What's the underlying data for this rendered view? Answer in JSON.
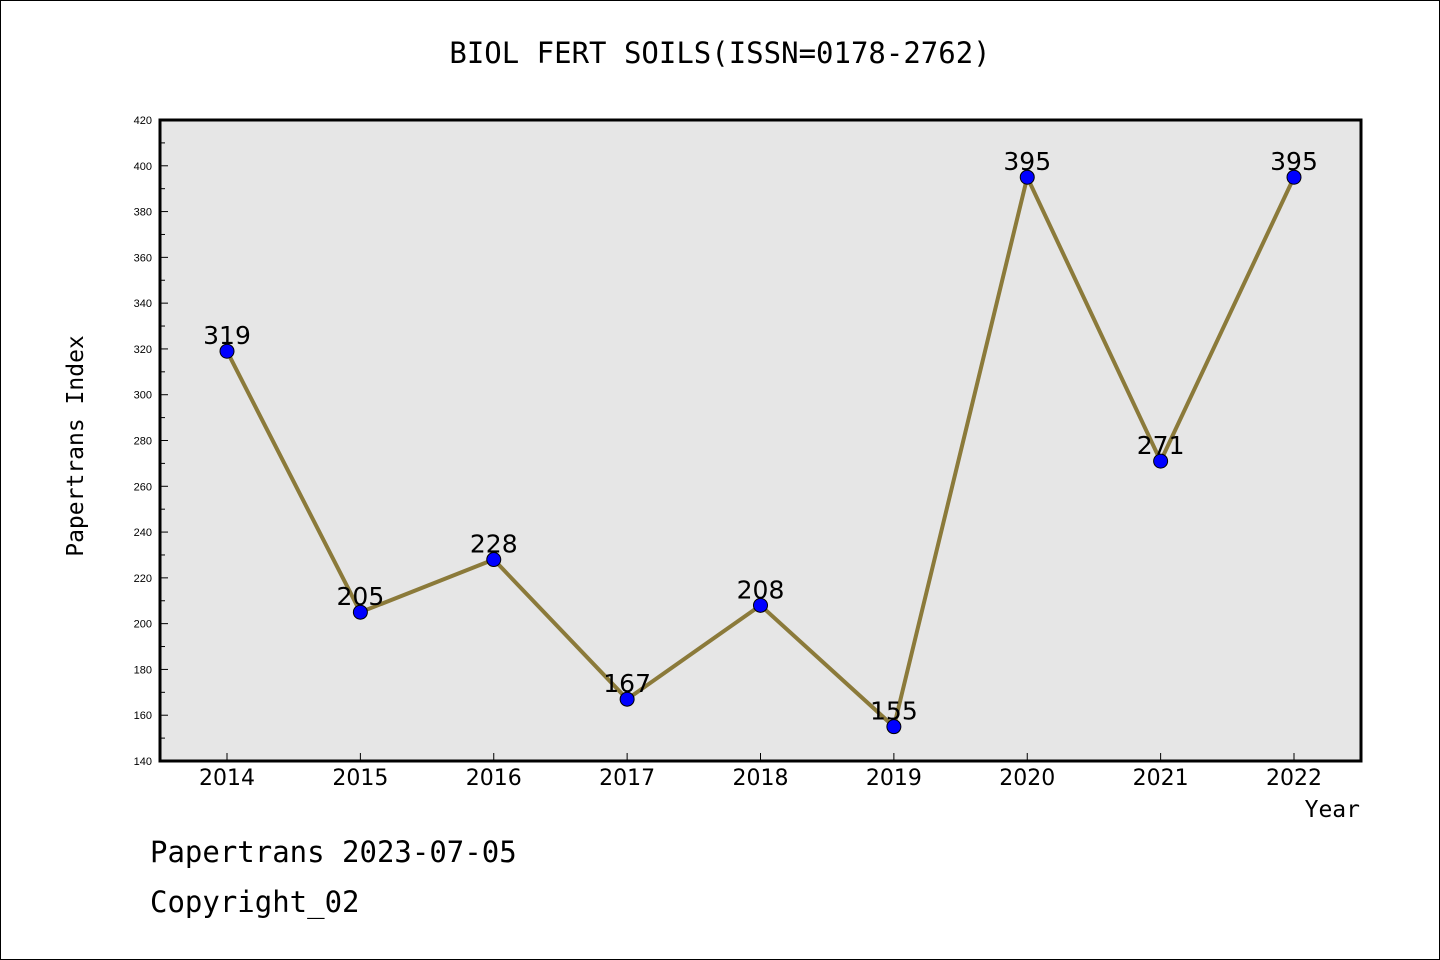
{
  "chart_data": {
    "type": "line",
    "title": "BIOL FERT SOILS(ISSN=0178-2762)",
    "xlabel": "Year",
    "ylabel": "Papertrans Index",
    "categories": [
      "2014",
      "2015",
      "2016",
      "2017",
      "2018",
      "2019",
      "2020",
      "2021",
      "2022"
    ],
    "series": [
      {
        "values": [
          319,
          205,
          228,
          167,
          208,
          155,
          395,
          271,
          395
        ]
      }
    ],
    "data_labels": [
      "319",
      "205",
      "228",
      "167",
      "208",
      "155",
      "395",
      "271",
      "395"
    ],
    "ylim": [
      140,
      420
    ],
    "y_ticks": [
      "140",
      "160",
      "180",
      "200",
      "220",
      "240",
      "260",
      "280",
      "300",
      "320",
      "340",
      "360",
      "380",
      "400",
      "420"
    ],
    "grid": false,
    "legend": "none",
    "colors": {
      "line": "#8b7a3a",
      "marker": "#0000ff",
      "plot_background": "#e6e6e6"
    }
  },
  "footer": {
    "date_line": "Papertrans 2023-07-05",
    "copyright": "Copyright_02"
  }
}
